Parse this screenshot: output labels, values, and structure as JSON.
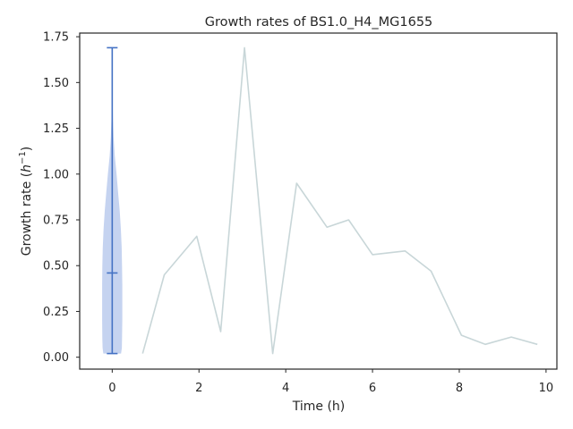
{
  "chart_data": {
    "type": "line",
    "title": "Growth rates of BS1.0_H4_MG1655",
    "xlabel": "Time (h)",
    "ylabel_prefix": "Growth rate (",
    "ylabel_var": "h",
    "ylabel_exp": "−1",
    "ylabel_suffix": ")",
    "xlim": [
      -0.75,
      10.25
    ],
    "ylim": [
      -0.065,
      1.77
    ],
    "xticks": [
      0,
      2,
      4,
      6,
      8,
      10
    ],
    "xtick_labels": [
      "0",
      "2",
      "4",
      "6",
      "8",
      "10"
    ],
    "yticks": [
      0.0,
      0.25,
      0.5,
      0.75,
      1.0,
      1.25,
      1.5,
      1.75
    ],
    "ytick_labels": [
      "0.00",
      "0.25",
      "0.50",
      "0.75",
      "1.00",
      "1.25",
      "1.50",
      "1.75"
    ],
    "grid": false,
    "series": [
      {
        "x": [
          0.7,
          1.2,
          1.95,
          2.5,
          3.05,
          3.7,
          4.25,
          4.95,
          5.45,
          6.0,
          6.75,
          7.35,
          8.05,
          8.6,
          9.2,
          9.8
        ],
        "values": [
          0.02,
          0.45,
          0.66,
          0.14,
          1.69,
          0.02,
          0.95,
          0.71,
          0.75,
          0.56,
          0.58,
          0.47,
          0.12,
          0.07,
          0.11,
          0.07
        ],
        "color": "#c8d6d8"
      }
    ],
    "violin": {
      "x": 0,
      "min": 0.02,
      "max": 1.69,
      "median": 0.46,
      "color": "#4472c4",
      "fill": "#c5d3f0",
      "profile": [
        [
          0.02,
          0.45
        ],
        [
          0.05,
          0.49
        ],
        [
          0.1,
          0.5
        ],
        [
          0.2,
          0.51
        ],
        [
          0.3,
          0.51
        ],
        [
          0.4,
          0.51
        ],
        [
          0.5,
          0.5
        ],
        [
          0.6,
          0.48
        ],
        [
          0.7,
          0.44
        ],
        [
          0.8,
          0.38
        ],
        [
          0.9,
          0.3
        ],
        [
          1.0,
          0.22
        ],
        [
          1.1,
          0.13
        ],
        [
          1.2,
          0.07
        ],
        [
          1.3,
          0.04
        ],
        [
          1.4,
          0.02
        ],
        [
          1.5,
          0.01
        ],
        [
          1.69,
          0.005
        ]
      ]
    }
  }
}
